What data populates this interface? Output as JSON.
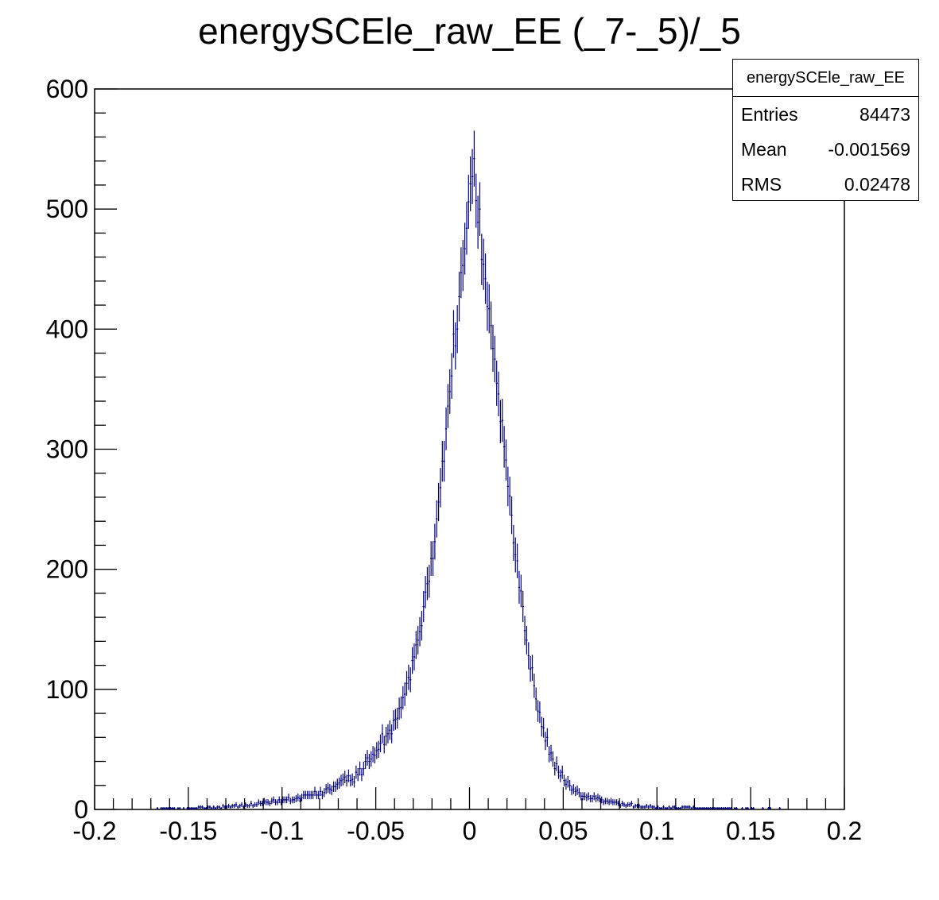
{
  "chart_data": {
    "type": "bar",
    "title": "energySCEle_raw_EE (_7-_5)/_5",
    "xlabel": "",
    "ylabel": "",
    "xlim": [
      -0.2,
      0.2
    ],
    "ylim": [
      0,
      600
    ],
    "x_ticks": [
      "-0.2",
      "-0.15",
      "-0.1",
      "-0.05",
      "0",
      "0.05",
      "0.1",
      "0.15",
      "0.2"
    ],
    "y_ticks": [
      "0",
      "100",
      "200",
      "300",
      "400",
      "500",
      "600"
    ],
    "line_color": "#000080",
    "histogram": {
      "bin_width": 0.001,
      "bins": 400,
      "mean": -0.001569,
      "rms": 0.02478,
      "entries": 84473,
      "peak_value": 540,
      "peak_x": 0.002
    },
    "profile_points": [
      {
        "x": -0.15,
        "y": 1
      },
      {
        "x": -0.1,
        "y": 7
      },
      {
        "x": -0.08,
        "y": 14
      },
      {
        "x": -0.06,
        "y": 30
      },
      {
        "x": -0.05,
        "y": 48
      },
      {
        "x": -0.04,
        "y": 75
      },
      {
        "x": -0.03,
        "y": 125
      },
      {
        "x": -0.02,
        "y": 215
      },
      {
        "x": -0.01,
        "y": 360
      },
      {
        "x": 0.0,
        "y": 510
      },
      {
        "x": 0.002,
        "y": 540
      },
      {
        "x": 0.01,
        "y": 420
      },
      {
        "x": 0.02,
        "y": 290
      },
      {
        "x": 0.03,
        "y": 150
      },
      {
        "x": 0.04,
        "y": 62
      },
      {
        "x": 0.05,
        "y": 25
      },
      {
        "x": 0.06,
        "y": 12
      },
      {
        "x": 0.08,
        "y": 5
      },
      {
        "x": 0.1,
        "y": 2
      },
      {
        "x": 0.15,
        "y": 0.5
      }
    ]
  },
  "stats_box": {
    "name": "energySCEle_raw_EE",
    "rows": [
      {
        "label": "Entries",
        "value": "84473"
      },
      {
        "label": "Mean",
        "value": "-0.001569"
      },
      {
        "label": "RMS",
        "value": "0.02478"
      }
    ]
  }
}
